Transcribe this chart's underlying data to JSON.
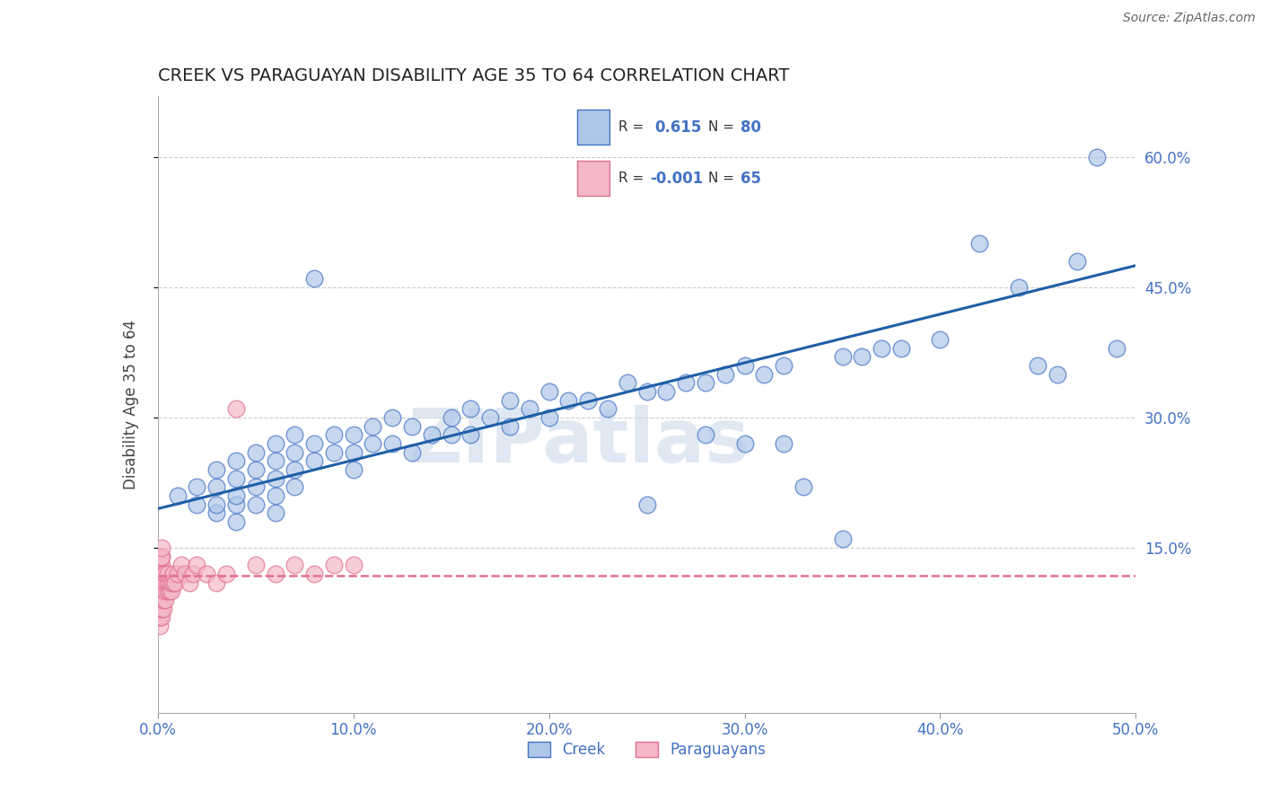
{
  "title": "CREEK VS PARAGUAYAN DISABILITY AGE 35 TO 64 CORRELATION CHART",
  "source_text": "Source: ZipAtlas.com",
  "xlabel_ticks": [
    "0.0%",
    "10.0%",
    "20.0%",
    "30.0%",
    "40.0%",
    "50.0%"
  ],
  "ylabel_ticks": [
    "15.0%",
    "30.0%",
    "45.0%",
    "60.0%"
  ],
  "ylabel_label": "Disability Age 35 to 64",
  "xlim": [
    0.0,
    0.5
  ],
  "ylim": [
    -0.04,
    0.67
  ],
  "legend_creek_R": "0.615",
  "legend_creek_N": "80",
  "legend_para_R": "-0.001",
  "legend_para_N": "65",
  "legend_entries": [
    "Creek",
    "Paraguayans"
  ],
  "creek_color": "#aec6e8",
  "creek_edge_color": "#4472c4",
  "creek_line_color": "#1f5fa6",
  "para_color": "#f4b8c8",
  "para_edge_color": "#e07090",
  "para_line_color": "#e07090",
  "watermark": "ZIPatlas",
  "title_color": "#222222",
  "axis_color": "#4472c4",
  "grid_color": "#cccccc",
  "creek_x": [
    0.01,
    0.02,
    0.02,
    0.03,
    0.03,
    0.03,
    0.03,
    0.04,
    0.04,
    0.04,
    0.04,
    0.04,
    0.05,
    0.05,
    0.05,
    0.05,
    0.06,
    0.06,
    0.06,
    0.06,
    0.06,
    0.07,
    0.07,
    0.07,
    0.07,
    0.08,
    0.08,
    0.08,
    0.09,
    0.09,
    0.1,
    0.1,
    0.1,
    0.11,
    0.11,
    0.12,
    0.12,
    0.13,
    0.13,
    0.14,
    0.15,
    0.15,
    0.16,
    0.16,
    0.17,
    0.18,
    0.18,
    0.19,
    0.2,
    0.2,
    0.21,
    0.22,
    0.23,
    0.24,
    0.25,
    0.26,
    0.27,
    0.28,
    0.29,
    0.3,
    0.31,
    0.32,
    0.33,
    0.35,
    0.36,
    0.37,
    0.38,
    0.4,
    0.42,
    0.44,
    0.45,
    0.46,
    0.47,
    0.48,
    0.49,
    0.3,
    0.25,
    0.35,
    0.28,
    0.32
  ],
  "creek_y": [
    0.21,
    0.2,
    0.22,
    0.19,
    0.2,
    0.22,
    0.24,
    0.18,
    0.2,
    0.21,
    0.23,
    0.25,
    0.2,
    0.22,
    0.24,
    0.26,
    0.19,
    0.21,
    0.23,
    0.25,
    0.27,
    0.22,
    0.24,
    0.26,
    0.28,
    0.46,
    0.25,
    0.27,
    0.26,
    0.28,
    0.24,
    0.26,
    0.28,
    0.27,
    0.29,
    0.27,
    0.3,
    0.26,
    0.29,
    0.28,
    0.28,
    0.3,
    0.28,
    0.31,
    0.3,
    0.29,
    0.32,
    0.31,
    0.3,
    0.33,
    0.32,
    0.32,
    0.31,
    0.34,
    0.33,
    0.33,
    0.34,
    0.34,
    0.35,
    0.36,
    0.35,
    0.36,
    0.22,
    0.37,
    0.37,
    0.38,
    0.38,
    0.39,
    0.5,
    0.45,
    0.36,
    0.35,
    0.48,
    0.6,
    0.38,
    0.27,
    0.2,
    0.16,
    0.28,
    0.27
  ],
  "para_x": [
    0.001,
    0.001,
    0.001,
    0.001,
    0.001,
    0.001,
    0.001,
    0.001,
    0.001,
    0.001,
    0.001,
    0.001,
    0.001,
    0.001,
    0.001,
    0.001,
    0.001,
    0.001,
    0.001,
    0.001,
    0.002,
    0.002,
    0.002,
    0.002,
    0.002,
    0.002,
    0.002,
    0.002,
    0.002,
    0.002,
    0.003,
    0.003,
    0.003,
    0.003,
    0.003,
    0.004,
    0.004,
    0.004,
    0.004,
    0.005,
    0.005,
    0.005,
    0.006,
    0.006,
    0.007,
    0.007,
    0.008,
    0.008,
    0.009,
    0.01,
    0.012,
    0.014,
    0.016,
    0.018,
    0.02,
    0.025,
    0.03,
    0.035,
    0.04,
    0.05,
    0.06,
    0.07,
    0.08,
    0.09,
    0.1
  ],
  "para_y": [
    0.06,
    0.07,
    0.07,
    0.08,
    0.08,
    0.09,
    0.09,
    0.1,
    0.1,
    0.11,
    0.11,
    0.11,
    0.12,
    0.12,
    0.12,
    0.13,
    0.13,
    0.13,
    0.14,
    0.14,
    0.07,
    0.08,
    0.09,
    0.1,
    0.11,
    0.12,
    0.13,
    0.14,
    0.14,
    0.15,
    0.08,
    0.09,
    0.1,
    0.11,
    0.12,
    0.09,
    0.1,
    0.11,
    0.12,
    0.1,
    0.11,
    0.12,
    0.1,
    0.11,
    0.1,
    0.11,
    0.11,
    0.12,
    0.11,
    0.12,
    0.13,
    0.12,
    0.11,
    0.12,
    0.13,
    0.12,
    0.11,
    0.12,
    0.31,
    0.13,
    0.12,
    0.13,
    0.12,
    0.13,
    0.13
  ],
  "creek_line_start_y": 0.195,
  "creek_line_end_y": 0.475,
  "para_line_y": 0.118
}
